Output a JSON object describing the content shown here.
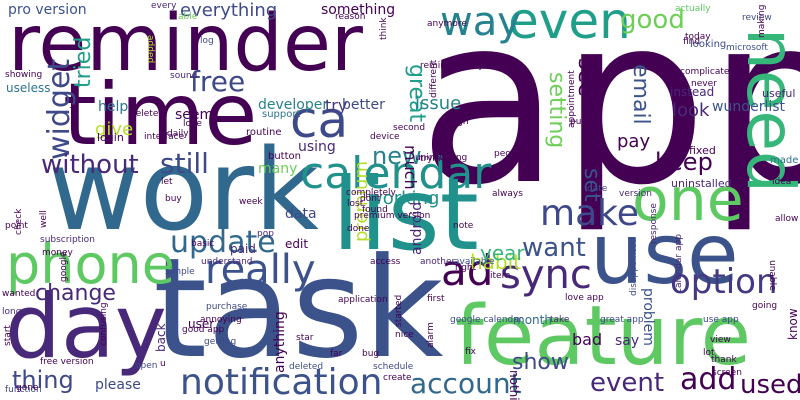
{
  "words": [
    {
      "text": "app",
      "color": "#440154"
    },
    {
      "text": "reminder",
      "color": "#440154"
    },
    {
      "text": "time",
      "color": "#440154"
    },
    {
      "text": "work",
      "color": "#31688e"
    },
    {
      "text": "task",
      "color": "#3b528b"
    },
    {
      "text": "list",
      "color": "#21918c"
    },
    {
      "text": "use",
      "color": "#3b528b"
    },
    {
      "text": "day",
      "color": "#482878"
    },
    {
      "text": "feature",
      "color": "#5ec962"
    },
    {
      "text": "one",
      "color": "#5ec962"
    },
    {
      "text": "even",
      "color": "#1f9e89"
    },
    {
      "text": "need",
      "color": "#35b779"
    },
    {
      "text": "phone",
      "color": "#5ec962"
    },
    {
      "text": "calendar",
      "color": "#21918c"
    },
    {
      "text": "notification",
      "color": "#3b528b"
    },
    {
      "text": "ca",
      "color": "#3e4989"
    },
    {
      "text": "sync",
      "color": "#482878"
    },
    {
      "text": "really",
      "color": "#3b528b"
    },
    {
      "text": "ad",
      "color": "#440154"
    },
    {
      "text": "make",
      "color": "#3e4989"
    },
    {
      "text": "option",
      "color": "#443983"
    },
    {
      "text": "way",
      "color": "#26828e"
    },
    {
      "text": "widget",
      "color": "#3e4989"
    },
    {
      "text": "free",
      "color": "#3e4989"
    },
    {
      "text": "update",
      "color": "#31688e"
    },
    {
      "text": "account",
      "color": "#31688e"
    },
    {
      "text": "event",
      "color": "#482878"
    },
    {
      "text": "add",
      "color": "#440154"
    },
    {
      "text": "used",
      "color": "#440154"
    },
    {
      "text": "without",
      "color": "#482878"
    },
    {
      "text": "still",
      "color": "#3e4989"
    },
    {
      "text": "good",
      "color": "#6ece58"
    },
    {
      "text": "want",
      "color": "#3b528b"
    },
    {
      "text": "change",
      "color": "#482878"
    },
    {
      "text": "thing",
      "color": "#3e4989"
    },
    {
      "text": "show",
      "color": "#3e4989"
    },
    {
      "text": "keep",
      "color": "#440154"
    },
    {
      "text": "habit",
      "color": "#b5de2b"
    },
    {
      "text": "year",
      "color": "#35b779"
    },
    {
      "text": "new",
      "color": "#26828e"
    },
    {
      "text": "set",
      "color": "#3b528b"
    },
    {
      "text": "setting",
      "color": "#6ece58"
    },
    {
      "text": "see",
      "color": "#440154"
    },
    {
      "text": "email",
      "color": "#3b528b"
    },
    {
      "text": "great",
      "color": "#1f9e89"
    },
    {
      "text": "tried",
      "color": "#1f9e89"
    },
    {
      "text": "give",
      "color": "#b5de2b"
    },
    {
      "text": "everything",
      "color": "#3e4989"
    },
    {
      "text": "pro version",
      "color": "#3b528b"
    },
    {
      "text": "something",
      "color": "#440154"
    },
    {
      "text": "developer",
      "color": "#26828e"
    },
    {
      "text": "better",
      "color": "#3e4989"
    },
    {
      "text": "issue",
      "color": "#26828e"
    },
    {
      "text": "help",
      "color": "#2c728e"
    },
    {
      "text": "seem",
      "color": "#440154"
    },
    {
      "text": "try",
      "color": "#443983"
    },
    {
      "text": "using",
      "color": "#482878"
    },
    {
      "text": "working",
      "color": "#21918c"
    },
    {
      "text": "premium",
      "color": "#b5de2b"
    },
    {
      "text": "android",
      "color": "#482878"
    },
    {
      "text": "much",
      "color": "#440154"
    },
    {
      "text": "pay",
      "color": "#440154"
    },
    {
      "text": "look",
      "color": "#482878"
    },
    {
      "text": "wunderlist",
      "color": "#3b528b"
    },
    {
      "text": "data",
      "color": "#3e4989"
    },
    {
      "text": "many",
      "color": "#6ece58"
    },
    {
      "text": "paid",
      "color": "#482878"
    },
    {
      "text": "edit",
      "color": "#440154"
    },
    {
      "text": "user",
      "color": "#440154"
    },
    {
      "text": "bad",
      "color": "#440154"
    },
    {
      "text": "month",
      "color": "#31688e"
    },
    {
      "text": "say",
      "color": "#482878"
    },
    {
      "text": "problem",
      "color": "#3b528b"
    },
    {
      "text": "nothing",
      "color": "#440154"
    },
    {
      "text": "know",
      "color": "#440154"
    },
    {
      "text": "please",
      "color": "#3e4989"
    },
    {
      "text": "anything",
      "color": "#440154"
    },
    {
      "text": "back",
      "color": "#482878"
    },
    {
      "text": "useless",
      "color": "#2c728e"
    },
    {
      "text": "login",
      "color": "#440154"
    },
    {
      "text": "uninstalled",
      "color": "#482878"
    },
    {
      "text": "fixed",
      "color": "#440154"
    },
    {
      "text": "instead",
      "color": "#482878"
    },
    {
      "text": "useful",
      "color": "#482878"
    },
    {
      "text": "made",
      "color": "#2c728e"
    },
    {
      "text": "review",
      "color": "#3e4989"
    },
    {
      "text": "today",
      "color": "#440154"
    },
    {
      "text": "find",
      "color": "#440154"
    },
    {
      "text": "looking",
      "color": "#3e4989"
    },
    {
      "text": "microsoft",
      "color": "#3b528b"
    },
    {
      "text": "actually",
      "color": "#5ec962"
    },
    {
      "text": "able",
      "color": "#6ece58"
    },
    {
      "text": "every",
      "color": "#482878"
    },
    {
      "text": "log",
      "color": "#3e4989"
    },
    {
      "text": "added",
      "color": "#b5de2b"
    },
    {
      "text": "support",
      "color": "#2c728e"
    },
    {
      "text": "routine",
      "color": "#440154"
    },
    {
      "text": "button",
      "color": "#440154"
    },
    {
      "text": "device",
      "color": "#440154"
    },
    {
      "text": "people",
      "color": "#440154"
    },
    {
      "text": "date",
      "color": "#3e4989"
    },
    {
      "text": "version",
      "color": "#482878"
    },
    {
      "text": "always",
      "color": "#440154"
    },
    {
      "text": "note",
      "color": "#440154"
    },
    {
      "text": "lost",
      "color": "#440154"
    },
    {
      "text": "done",
      "color": "#440154"
    },
    {
      "text": "pop",
      "color": "#482878"
    },
    {
      "text": "week",
      "color": "#440154"
    },
    {
      "text": "buy",
      "color": "#440154"
    },
    {
      "text": "let",
      "color": "#440154"
    },
    {
      "text": "understand",
      "color": "#482878"
    },
    {
      "text": "subscription",
      "color": "#482878"
    },
    {
      "text": "simple",
      "color": "#3e4989"
    },
    {
      "text": "money",
      "color": "#440154"
    },
    {
      "text": "wanted",
      "color": "#440154"
    },
    {
      "text": "longer",
      "color": "#482878"
    },
    {
      "text": "start",
      "color": "#440154"
    },
    {
      "text": "free version",
      "color": "#440154"
    },
    {
      "text": "function",
      "color": "#3e4989"
    },
    {
      "text": "annoying",
      "color": "#440154"
    },
    {
      "text": "good app",
      "color": "#440154"
    },
    {
      "text": "open",
      "color": "#3e4989"
    },
    {
      "text": "getting",
      "color": "#3e4989"
    },
    {
      "text": "purchase",
      "color": "#3e4989"
    },
    {
      "text": "star",
      "color": "#440154"
    },
    {
      "text": "deleted",
      "color": "#3b528b"
    },
    {
      "text": "create",
      "color": "#440154"
    },
    {
      "text": "schedule",
      "color": "#3e4989"
    },
    {
      "text": "bug",
      "color": "#440154"
    },
    {
      "text": "far",
      "color": "#440154"
    },
    {
      "text": "another",
      "color": "#482878"
    },
    {
      "text": "available",
      "color": "#3b528b"
    },
    {
      "text": "right",
      "color": "#440154"
    },
    {
      "text": "first",
      "color": "#440154"
    },
    {
      "text": "item",
      "color": "#440154"
    },
    {
      "text": "alarm",
      "color": "#440154"
    },
    {
      "text": "fix",
      "color": "#440154"
    },
    {
      "text": "google calendar",
      "color": "#3e4989"
    },
    {
      "text": "take",
      "color": "#482878"
    },
    {
      "text": "great app",
      "color": "#3e4989"
    },
    {
      "text": "use app",
      "color": "#3e4989"
    },
    {
      "text": "lot",
      "color": "#440154"
    },
    {
      "text": "screen",
      "color": "#440154"
    },
    {
      "text": "thank",
      "color": "#440154"
    },
    {
      "text": "view",
      "color": "#440154"
    },
    {
      "text": "allow",
      "color": "#440154"
    },
    {
      "text": "going",
      "color": "#440154"
    },
    {
      "text": "calendar app",
      "color": "#482878"
    },
    {
      "text": "response",
      "color": "#482878"
    },
    {
      "text": "disappointed",
      "color": "#3e4989"
    },
    {
      "text": "started",
      "color": "#440154"
    },
    {
      "text": "nice",
      "color": "#440154"
    },
    {
      "text": "love app",
      "color": "#440154"
    },
    {
      "text": "put",
      "color": "#440154"
    },
    {
      "text": "please fix",
      "color": "#440154"
    },
    {
      "text": "appointment",
      "color": "#440154"
    },
    {
      "text": "sign",
      "color": "#440154"
    },
    {
      "text": "already",
      "color": "#440154"
    },
    {
      "text": "remind",
      "color": "#440154"
    },
    {
      "text": "anymore",
      "color": "#440154"
    },
    {
      "text": "different",
      "color": "#440154"
    },
    {
      "text": "second",
      "color": "#440154"
    },
    {
      "text": "think",
      "color": "#440154"
    },
    {
      "text": "reason",
      "color": "#440154"
    },
    {
      "text": "sound",
      "color": "#482878"
    },
    {
      "text": "showing",
      "color": "#440154"
    },
    {
      "text": "daily",
      "color": "#440154"
    },
    {
      "text": "interface",
      "color": "#440154"
    },
    {
      "text": "love",
      "color": "#440154"
    },
    {
      "text": "dont",
      "color": "#440154"
    },
    {
      "text": "trying",
      "color": "#440154"
    },
    {
      "text": "found",
      "color": "#440154"
    },
    {
      "text": "completely",
      "color": "#440154"
    },
    {
      "text": "access",
      "color": "#440154"
    },
    {
      "text": "premium version",
      "color": "#440154"
    },
    {
      "text": "application",
      "color": "#440154"
    },
    {
      "text": "basic",
      "color": "#440154"
    },
    {
      "text": "making",
      "color": "#440154"
    },
    {
      "text": "complicated",
      "color": "#440154"
    },
    {
      "text": "never",
      "color": "#440154"
    },
    {
      "text": "idea",
      "color": "#440154"
    },
    {
      "text": "gone",
      "color": "#440154"
    },
    {
      "text": "point",
      "color": "#440154"
    },
    {
      "text": "check",
      "color": "#440154"
    },
    {
      "text": "well",
      "color": "#440154"
    },
    {
      "text": "google",
      "color": "#440154"
    },
    {
      "text": "confusing",
      "color": "#440154"
    },
    {
      "text": "uninstalling",
      "color": "#440154"
    },
    {
      "text": "unable",
      "color": "#440154"
    },
    {
      "text": "got",
      "color": "#440154"
    },
    {
      "text": "delete",
      "color": "#440154"
    },
    {
      "text": "u",
      "color": "#440154"
    }
  ]
}
